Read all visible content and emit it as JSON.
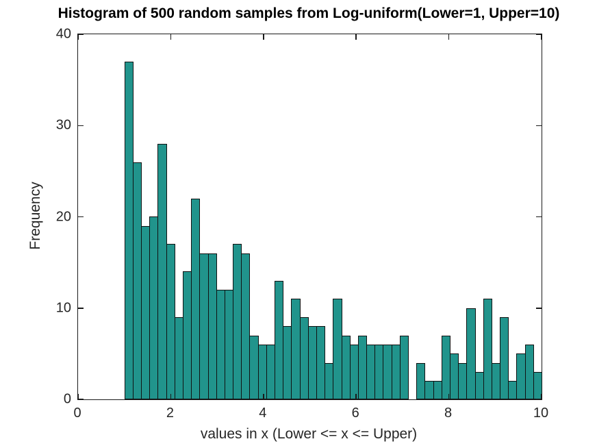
{
  "figure": {
    "background": "#ffffff"
  },
  "chart_data": {
    "type": "bar",
    "subtype": "histogram",
    "title": "Histogram of 500 random samples from Log-uniform(Lower=1, Upper=10)",
    "xlabel": "values in x (Lower <= x <= Upper)",
    "ylabel": "Frequency",
    "total_samples": 500,
    "bin_start": 1.0,
    "bin_width": 0.18,
    "values": [
      37,
      26,
      19,
      20,
      28,
      17,
      9,
      14,
      22,
      16,
      16,
      12,
      12,
      17,
      16,
      7,
      6,
      6,
      13,
      8,
      11,
      9,
      8,
      8,
      4,
      11,
      7,
      6,
      7,
      6,
      6,
      6,
      6,
      7,
      0,
      4,
      2,
      2,
      7,
      5,
      4,
      10,
      3,
      11,
      4,
      9,
      2,
      5,
      6,
      3
    ],
    "xlim": [
      0,
      10
    ],
    "ylim": [
      0,
      40
    ],
    "x_ticks": [
      0,
      2,
      4,
      6,
      8,
      10
    ],
    "y_ticks": [
      0,
      10,
      20,
      30,
      40
    ],
    "grid": false,
    "legend": null,
    "box": true,
    "tick_direction": "in",
    "bar_color": "#21948c",
    "bar_edge_color": "#111111",
    "axis_color": "#1a1a1a",
    "label_color": "#262626"
  }
}
